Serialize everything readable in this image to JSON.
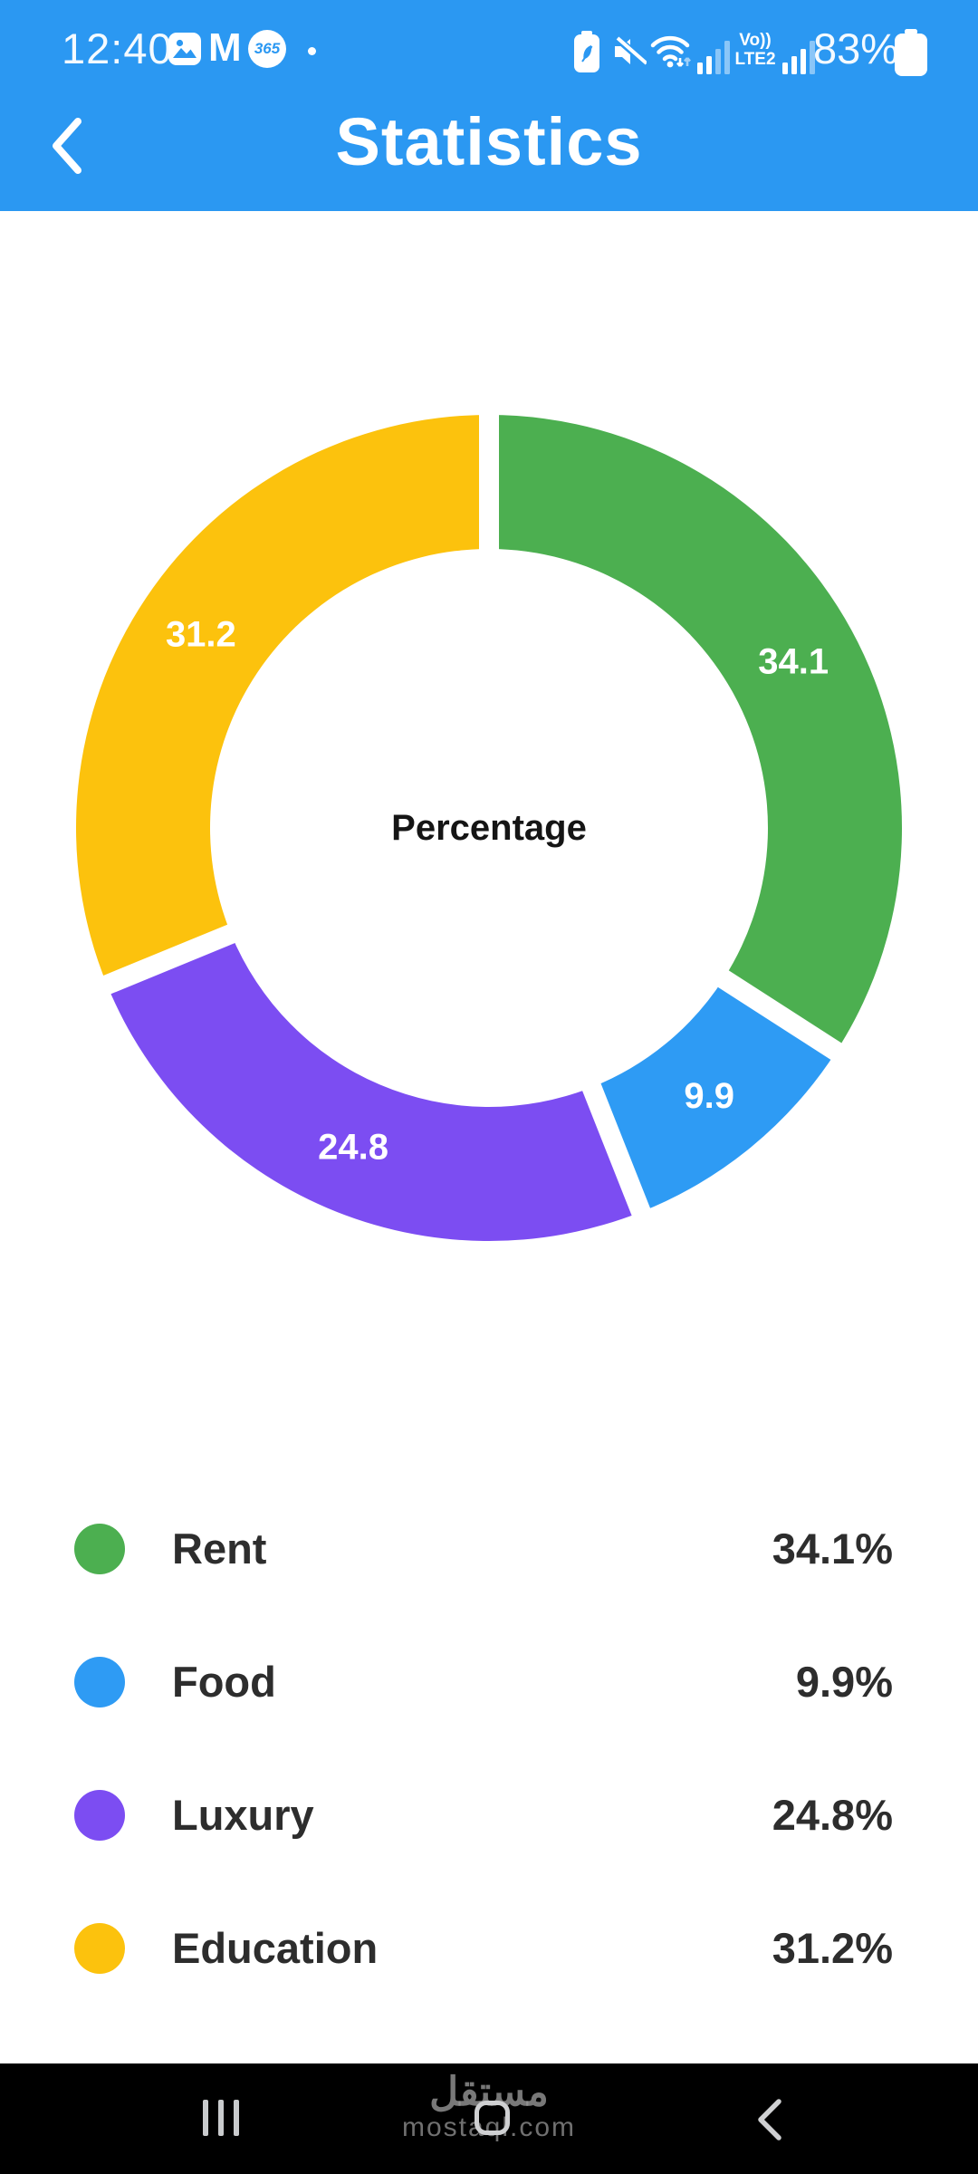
{
  "status_bar": {
    "time": "12:40",
    "left_icons": [
      "gallery-icon",
      "gmail-icon",
      "app365-icon",
      "notification-dot"
    ],
    "app365_label": "365",
    "right_icons": [
      "battery-saver-icon",
      "mute-icon",
      "wifi-icon",
      "signal-bars",
      "volte-label",
      "signal-bars",
      "battery-icon"
    ],
    "volte_line1": "Vo))",
    "volte_line2": "LTE2",
    "battery_percent": "83%"
  },
  "header": {
    "title": "Statistics"
  },
  "chart_data": {
    "type": "pie",
    "donut": true,
    "title": "Percentage",
    "center_label": "Percentage",
    "categories": [
      "Rent",
      "Food",
      "Luxury",
      "Education"
    ],
    "values": [
      34.1,
      9.9,
      24.8,
      31.2
    ],
    "slice_labels": [
      "34.1",
      "9.9",
      "24.8",
      "31.2"
    ],
    "colors": [
      "#4caf50",
      "#2e9bf4",
      "#7c4df2",
      "#fcc20d"
    ],
    "start_angle_deg": 0,
    "clockwise": true,
    "legend_position": "bottom",
    "legend_items": [
      {
        "label": "Rent",
        "value_label": "34.1%",
        "color": "#4caf50"
      },
      {
        "label": "Food",
        "value_label": "9.9%",
        "color": "#2e9bf4"
      },
      {
        "label": "Luxury",
        "value_label": "24.8%",
        "color": "#7c4df2"
      },
      {
        "label": "Education",
        "value_label": "31.2%",
        "color": "#fcc20d"
      }
    ]
  },
  "nav_bar": {
    "icons": [
      "recents-icon",
      "home-icon",
      "back-icon"
    ],
    "watermark_title": "مستقل",
    "watermark_domain": "mostaql.com"
  },
  "colors": {
    "header_blue": "#2b98f2",
    "nav_black": "#000000",
    "legend_text": "#2d2d2d"
  }
}
